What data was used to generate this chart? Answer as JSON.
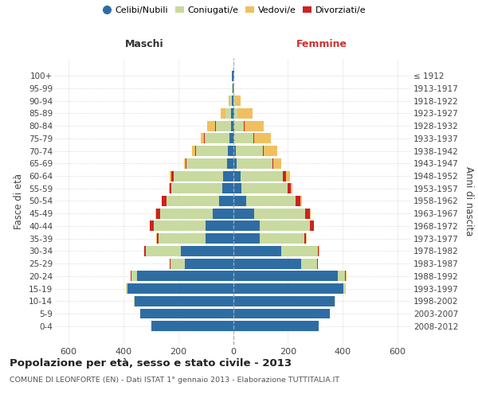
{
  "age_groups": [
    "100+",
    "95-99",
    "90-94",
    "85-89",
    "80-84",
    "75-79",
    "70-74",
    "65-69",
    "60-64",
    "55-59",
    "50-54",
    "45-49",
    "40-44",
    "35-39",
    "30-34",
    "25-29",
    "20-24",
    "15-19",
    "10-14",
    "5-9",
    "0-4"
  ],
  "birth_years": [
    "≤ 1912",
    "1913-1917",
    "1918-1922",
    "1923-1927",
    "1928-1932",
    "1933-1937",
    "1938-1942",
    "1943-1947",
    "1948-1952",
    "1953-1957",
    "1958-1962",
    "1963-1967",
    "1968-1972",
    "1973-1977",
    "1978-1982",
    "1983-1987",
    "1988-1992",
    "1993-1997",
    "1998-2002",
    "2003-2007",
    "2008-2012"
  ],
  "colors": {
    "celibe": "#2e6da4",
    "coniugato": "#c8daa0",
    "vedovo": "#f0c060",
    "divorziato": "#cc2222"
  },
  "males": {
    "celibe": [
      3,
      2,
      3,
      6,
      8,
      14,
      18,
      22,
      35,
      38,
      52,
      75,
      100,
      100,
      190,
      175,
      350,
      385,
      360,
      338,
      298
    ],
    "coniugato": [
      0,
      2,
      8,
      22,
      55,
      88,
      118,
      148,
      182,
      186,
      192,
      192,
      188,
      173,
      128,
      52,
      22,
      5,
      2,
      1,
      0
    ],
    "vedovo": [
      0,
      0,
      5,
      18,
      28,
      14,
      12,
      7,
      5,
      2,
      2,
      2,
      2,
      1,
      1,
      1,
      1,
      0,
      0,
      0,
      0
    ],
    "divorziato": [
      0,
      0,
      0,
      0,
      3,
      3,
      3,
      3,
      9,
      8,
      15,
      15,
      15,
      6,
      5,
      4,
      2,
      0,
      0,
      0,
      0
    ]
  },
  "females": {
    "nubile": [
      3,
      2,
      2,
      3,
      4,
      5,
      9,
      14,
      28,
      30,
      47,
      76,
      98,
      98,
      176,
      248,
      382,
      403,
      372,
      352,
      312
    ],
    "coniugata": [
      0,
      1,
      5,
      14,
      36,
      70,
      100,
      130,
      155,
      170,
      180,
      186,
      184,
      163,
      133,
      58,
      28,
      8,
      2,
      1,
      0
    ],
    "vedova": [
      0,
      2,
      22,
      55,
      70,
      60,
      50,
      30,
      15,
      8,
      5,
      3,
      2,
      2,
      1,
      1,
      1,
      0,
      0,
      0,
      0
    ],
    "divorziata": [
      0,
      0,
      0,
      0,
      2,
      2,
      2,
      3,
      10,
      10,
      20,
      20,
      12,
      5,
      5,
      3,
      2,
      0,
      0,
      0,
      0
    ]
  },
  "xlim": 650,
  "title": "Popolazione per età, sesso e stato civile - 2013",
  "subtitle": "COMUNE DI LEONFORTE (EN) - Dati ISTAT 1° gennaio 2013 - Elaborazione TUTTITALIA.IT",
  "label_maschi": "Maschi",
  "label_femmine": "Femmine",
  "ylabel_left": "Fasce di età",
  "ylabel_right": "Anni di nascita",
  "legend_labels": [
    "Celibi/Nubili",
    "Coniugati/e",
    "Vedovi/e",
    "Divorziati/e"
  ],
  "background_color": "#ffffff",
  "grid_color": "#cccccc"
}
